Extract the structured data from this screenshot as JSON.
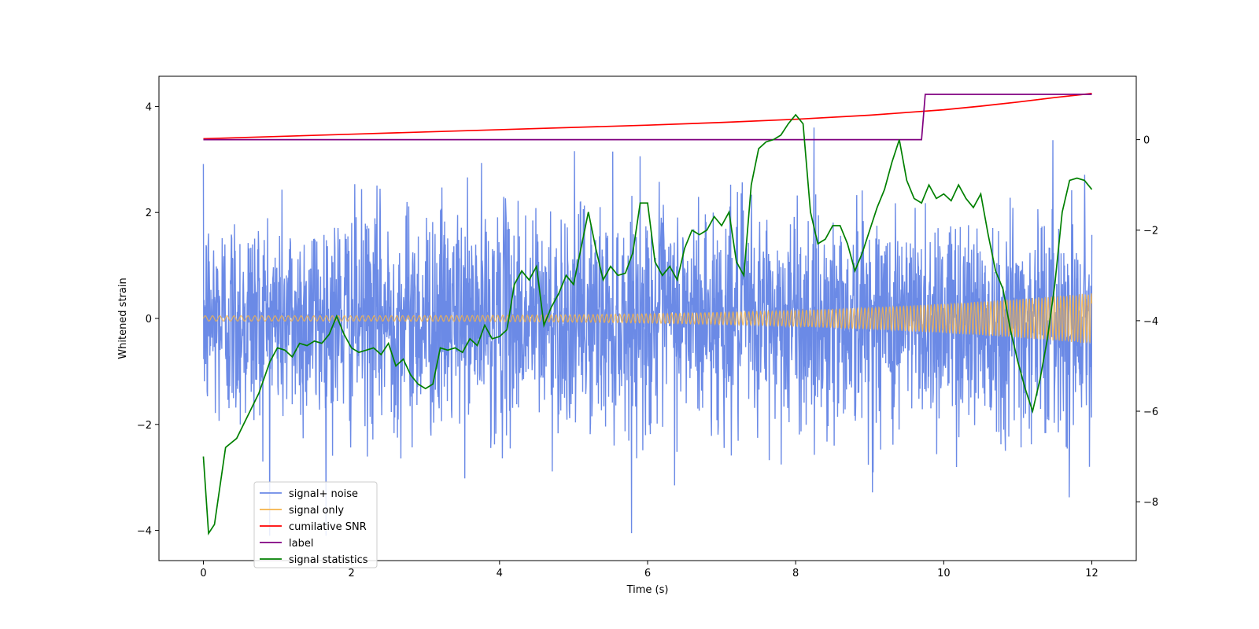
{
  "chart_data": {
    "type": "line",
    "title": "",
    "xlabel": "Time (s)",
    "ylabel": "Whitened strain",
    "y2label": "",
    "xlim": [
      -0.6,
      12.6
    ],
    "ylim": [
      -4.57,
      4.57
    ],
    "y2lim": [
      -9.3,
      1.4
    ],
    "xticks": [
      0,
      2,
      4,
      6,
      8,
      10,
      12
    ],
    "xtick_labels": [
      "0",
      "2",
      "4",
      "6",
      "8",
      "10",
      "12"
    ],
    "yticks": [
      -4,
      -2,
      0,
      2,
      4
    ],
    "ytick_labels": [
      "−4",
      "−2",
      "0",
      "2",
      "4"
    ],
    "y2ticks": [
      -8,
      -6,
      -4,
      -2,
      0
    ],
    "y2tick_labels": [
      "−8",
      "−6",
      "−4",
      "−2",
      "0"
    ],
    "legend_position": "bottom-left",
    "series": [
      {
        "name": "signal+ noise",
        "color": "#6b8ae6",
        "axis": "left",
        "x_range": [
          0,
          12
        ],
        "description_values": {
          "std": 1.05,
          "min": -4.1,
          "max": 3.9
        }
      },
      {
        "name": "signal only",
        "color": "#f5b34a",
        "axis": "left",
        "x_range": [
          0,
          12
        ],
        "amplitude_start": 0.05,
        "amplitude_end": 0.48
      },
      {
        "name": "cumilative SNR",
        "color": "#ff0000",
        "axis": "right",
        "x": [
          0,
          2,
          4,
          6,
          7,
          8,
          9,
          9.5,
          10,
          10.5,
          11,
          11.5,
          12
        ],
        "y": [
          0.02,
          0.12,
          0.22,
          0.32,
          0.38,
          0.45,
          0.54,
          0.6,
          0.66,
          0.74,
          0.83,
          0.93,
          1.02
        ]
      },
      {
        "name": "label",
        "color": "#800080",
        "axis": "right",
        "x": [
          0,
          9.7,
          9.75,
          12
        ],
        "y": [
          0,
          0,
          1,
          1
        ]
      },
      {
        "name": "signal statistics",
        "color": "#008000",
        "axis": "right",
        "x": [
          0,
          0.07,
          0.15,
          0.3,
          0.45,
          0.6,
          0.75,
          0.9,
          1.0,
          1.1,
          1.2,
          1.3,
          1.4,
          1.5,
          1.6,
          1.7,
          1.8,
          1.9,
          2.0,
          2.1,
          2.2,
          2.3,
          2.4,
          2.5,
          2.6,
          2.7,
          2.8,
          2.9,
          3.0,
          3.1,
          3.2,
          3.3,
          3.4,
          3.5,
          3.6,
          3.7,
          3.8,
          3.9,
          4.0,
          4.1,
          4.2,
          4.3,
          4.4,
          4.5,
          4.6,
          4.7,
          4.8,
          4.9,
          5.0,
          5.1,
          5.2,
          5.3,
          5.4,
          5.5,
          5.6,
          5.7,
          5.8,
          5.9,
          6.0,
          6.1,
          6.2,
          6.3,
          6.4,
          6.5,
          6.6,
          6.7,
          6.8,
          6.9,
          7.0,
          7.1,
          7.2,
          7.3,
          7.4,
          7.5,
          7.6,
          7.7,
          7.8,
          7.9,
          8.0,
          8.1,
          8.2,
          8.3,
          8.4,
          8.5,
          8.6,
          8.7,
          8.8,
          8.9,
          9.0,
          9.1,
          9.2,
          9.3,
          9.4,
          9.5,
          9.6,
          9.7,
          9.8,
          9.9,
          10.0,
          10.1,
          10.2,
          10.3,
          10.4,
          10.5,
          10.6,
          10.7,
          10.8,
          10.9,
          11.0,
          11.1,
          11.2,
          11.3,
          11.4,
          11.5,
          11.6,
          11.7,
          11.8,
          11.9,
          12.0
        ],
        "y": [
          -7.0,
          -8.7,
          -8.5,
          -6.8,
          -6.6,
          -6.1,
          -5.6,
          -4.9,
          -4.6,
          -4.65,
          -4.8,
          -4.5,
          -4.55,
          -4.45,
          -4.5,
          -4.3,
          -3.9,
          -4.3,
          -4.6,
          -4.7,
          -4.65,
          -4.6,
          -4.75,
          -4.5,
          -5.0,
          -4.85,
          -5.2,
          -5.4,
          -5.5,
          -5.4,
          -4.6,
          -4.65,
          -4.6,
          -4.7,
          -4.4,
          -4.55,
          -4.1,
          -4.4,
          -4.35,
          -4.2,
          -3.2,
          -2.9,
          -3.1,
          -2.8,
          -4.1,
          -3.7,
          -3.4,
          -3.0,
          -3.2,
          -2.4,
          -1.6,
          -2.4,
          -3.1,
          -2.8,
          -3.0,
          -2.95,
          -2.5,
          -1.4,
          -1.4,
          -2.7,
          -3.0,
          -2.8,
          -3.1,
          -2.4,
          -2.0,
          -2.1,
          -2.0,
          -1.7,
          -1.9,
          -1.6,
          -2.7,
          -3.0,
          -1.0,
          -0.2,
          -0.05,
          0.0,
          0.1,
          0.35,
          0.55,
          0.35,
          -1.6,
          -2.3,
          -2.2,
          -1.9,
          -1.9,
          -2.3,
          -2.9,
          -2.5,
          -2.0,
          -1.5,
          -1.1,
          -0.5,
          0.0,
          -0.9,
          -1.3,
          -1.4,
          -1.0,
          -1.3,
          -1.2,
          -1.35,
          -1.0,
          -1.3,
          -1.5,
          -1.2,
          -2.1,
          -2.9,
          -3.3,
          -4.2,
          -4.9,
          -5.5,
          -6.0,
          -5.3,
          -4.4,
          -3.2,
          -1.6,
          -0.9,
          -0.85,
          -0.9,
          -1.1
        ]
      }
    ]
  }
}
